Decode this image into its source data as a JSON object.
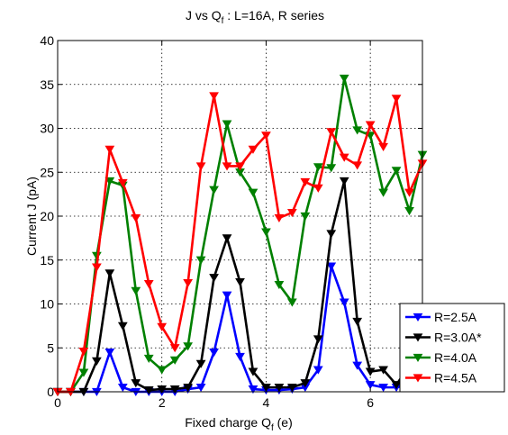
{
  "chart_data": {
    "type": "line",
    "title": "J vs Q",
    "title_sub": "f",
    "title_rest": " : L=16A, R series",
    "xlabel": "Fixed charge Q",
    "xlabel_sub": "f",
    "xlabel_rest": " (e)",
    "ylabel": "Current J (pA)",
    "xlim": [
      0,
      7
    ],
    "ylim": [
      0,
      40
    ],
    "xticks": [
      0,
      2,
      4,
      6
    ],
    "yticks": [
      0,
      5,
      10,
      15,
      20,
      25,
      30,
      35,
      40
    ],
    "grid": true,
    "marker": "triangle-down",
    "legend_position": "bottom-right outside",
    "x": [
      0,
      0.25,
      0.5,
      0.75,
      1.0,
      1.25,
      1.5,
      1.75,
      2.0,
      2.25,
      2.5,
      2.75,
      3.0,
      3.25,
      3.5,
      3.75,
      4.0,
      4.25,
      4.5,
      4.75,
      5.0,
      5.25,
      5.5,
      5.75,
      6.0,
      6.25,
      6.5,
      6.75,
      7.0
    ],
    "series": [
      {
        "name": "R=2.5A",
        "color": "#0000ff",
        "values": [
          0,
          0,
          0,
          0,
          4.5,
          0.5,
          0,
          0,
          0,
          0,
          0.3,
          0.5,
          4.5,
          11,
          4,
          0.3,
          0.2,
          0.2,
          0.3,
          0.5,
          2.5,
          14.3,
          10.2,
          3,
          0.8,
          0.5,
          0.5,
          0.8,
          0.5
        ]
      },
      {
        "name": "R=3.0A*",
        "color": "#000000",
        "values": [
          0,
          0,
          0,
          3.5,
          13.5,
          7.5,
          1,
          0.2,
          0.3,
          0.3,
          0.5,
          3.2,
          13,
          17.5,
          12.5,
          2.3,
          0.5,
          0.5,
          0.5,
          1,
          6,
          18,
          24,
          8,
          2.3,
          2.5,
          0.8,
          3,
          8.7
        ]
      },
      {
        "name": "R=4.0A",
        "color": "#008000",
        "values": [
          0,
          0,
          2.2,
          15.5,
          24,
          23.5,
          11.5,
          3.8,
          2.5,
          3.6,
          5.2,
          15,
          23,
          30.5,
          25,
          22.7,
          18.2,
          12.2,
          10.2,
          20,
          25.6,
          25.5,
          35.7,
          29.8,
          29.2,
          22.7,
          25.2,
          20.6,
          27
        ]
      },
      {
        "name": "R=4.5A",
        "color": "#ff0000",
        "values": [
          0,
          0,
          4.6,
          14.2,
          27.6,
          23.8,
          19.8,
          12.3,
          7.4,
          5,
          12.4,
          25.7,
          33.7,
          25.7,
          25.7,
          27.6,
          29.2,
          19.8,
          20.4,
          23.9,
          23.2,
          29.6,
          26.7,
          25.8,
          30.4,
          27.9,
          33.4,
          22.7,
          26
        ]
      }
    ]
  }
}
